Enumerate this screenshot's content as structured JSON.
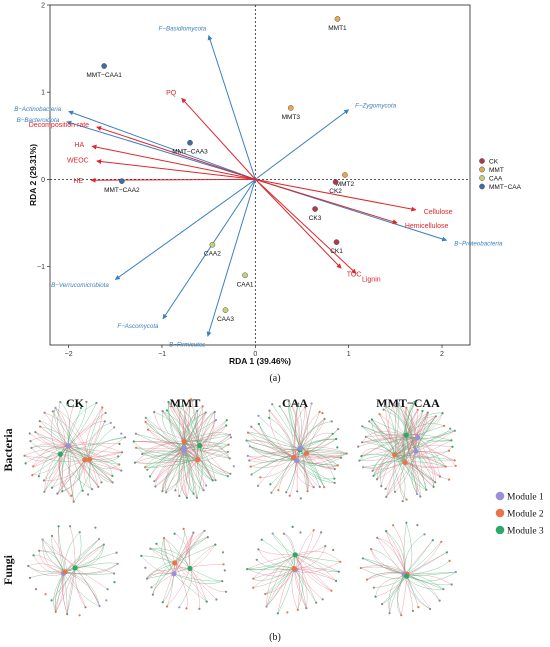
{
  "colors": {
    "blue_vector": "#3b7fbf",
    "red_vector": "#e0262b",
    "CK": "#b1384b",
    "MMT": "#e8a84f",
    "CAA": "#c7cf78",
    "MMT-CAA": "#3a6fa6",
    "module1": "#9b8fdb",
    "module2": "#e8754a",
    "module3": "#2da866",
    "edge_pos": "#e36f86",
    "edge_neg": "#3fae6a"
  },
  "chart_data": [
    {
      "type": "scatter",
      "subtype": "rda-biplot",
      "xlabel": "RDA 1 (39.46%)",
      "ylabel": "RDA 2 (29.31%)",
      "xlim": [
        -2.2,
        2.3
      ],
      "ylim": [
        -1.9,
        2.0
      ],
      "xticks": [
        -2,
        -1,
        0,
        1,
        2
      ],
      "yticks": [
        -1,
        0,
        1,
        2
      ],
      "reference_lines": "dashed at x=0 and y=0",
      "grid": false,
      "legend_position": "right",
      "legend": [
        {
          "name": "CK",
          "color_key": "CK"
        },
        {
          "name": "MMT",
          "color_key": "MMT"
        },
        {
          "name": "CAA",
          "color_key": "CAA"
        },
        {
          "name": "MMT−CAA",
          "color_key": "MMT-CAA"
        }
      ],
      "samples": [
        {
          "label": "MMT−CAA1",
          "group": "MMT-CAA",
          "x": -1.62,
          "y": 1.3
        },
        {
          "label": "MMT−CAA3",
          "group": "MMT-CAA",
          "x": -0.7,
          "y": 0.42
        },
        {
          "label": "MMT−CAA2",
          "group": "MMT-CAA",
          "x": -1.43,
          "y": -0.02
        },
        {
          "label": "MMT1",
          "group": "MMT",
          "x": 0.88,
          "y": 1.84
        },
        {
          "label": "MMT3",
          "group": "MMT",
          "x": 0.38,
          "y": 0.82
        },
        {
          "label": "MMT2",
          "group": "MMT",
          "x": 0.96,
          "y": 0.05
        },
        {
          "label": "CK2",
          "group": "CK",
          "x": 0.86,
          "y": -0.03
        },
        {
          "label": "CK3",
          "group": "CK",
          "x": 0.64,
          "y": -0.34
        },
        {
          "label": "CK1",
          "group": "CK",
          "x": 0.87,
          "y": -0.72
        },
        {
          "label": "CAA2",
          "group": "CAA",
          "x": -0.46,
          "y": -0.75
        },
        {
          "label": "CAA1",
          "group": "CAA",
          "x": -0.11,
          "y": -1.1
        },
        {
          "label": "CAA3",
          "group": "CAA",
          "x": -0.32,
          "y": -1.5
        }
      ],
      "species_vectors": [
        {
          "label": "F−Basidiomycota",
          "x": -0.5,
          "y": 1.65
        },
        {
          "label": "F−Zygomycota",
          "x": 1.0,
          "y": 0.8
        },
        {
          "label": "B−Actinobacteria",
          "x": -2.0,
          "y": 0.78
        },
        {
          "label": "B−Bacteroidota",
          "x": -2.02,
          "y": 0.66
        },
        {
          "label": "B−Proteobacteria",
          "x": 2.05,
          "y": -0.7
        },
        {
          "label": "B−Verrucomicrobiota",
          "x": -1.5,
          "y": -1.15
        },
        {
          "label": "F−Ascomycota",
          "x": -0.99,
          "y": -1.6
        },
        {
          "label": "B−Firmicutes",
          "x": -0.51,
          "y": -1.8
        }
      ],
      "environment_vectors": [
        {
          "label": "PQ",
          "x": -0.79,
          "y": 0.93
        },
        {
          "label": "Decomposition rate",
          "x": -1.7,
          "y": 0.6
        },
        {
          "label": "HA",
          "x": -1.75,
          "y": 0.38
        },
        {
          "label": "WEOC",
          "x": -1.7,
          "y": 0.21
        },
        {
          "label": "HE",
          "x": -1.76,
          "y": -0.01
        },
        {
          "label": "Cellulose",
          "x": 1.72,
          "y": -0.35
        },
        {
          "label": "Hemicellulose",
          "x": 1.52,
          "y": -0.5
        },
        {
          "label": "TOC",
          "x": 0.92,
          "y": -1.02
        },
        {
          "label": "Lignin",
          "x": 1.08,
          "y": -1.08
        }
      ],
      "panel_label": "(a)"
    },
    {
      "type": "network-grid",
      "columns": [
        "CK",
        "MMT",
        "CAA",
        "MMT−CAA"
      ],
      "rows": [
        "Bacteria",
        "Fungi"
      ],
      "legend": [
        {
          "name": "Module 1",
          "color_key": "module1"
        },
        {
          "name": "Module 2",
          "color_key": "module2"
        },
        {
          "name": "Module 3",
          "color_key": "module3"
        }
      ],
      "panel_label": "(b)"
    }
  ]
}
